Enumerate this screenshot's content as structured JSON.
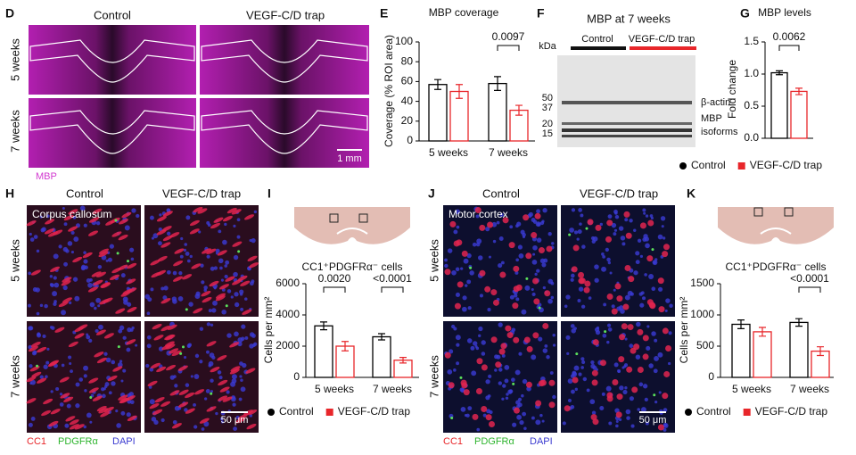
{
  "figure": {
    "D": {
      "label": "D",
      "columns": [
        "Control",
        "VEGF-C/D trap"
      ],
      "rows": [
        "5 weeks",
        "7 weeks"
      ],
      "stain": "MBP",
      "scale": "1 mm"
    },
    "F": {
      "label": "F",
      "title": "MBP at 7 weeks",
      "unit": "kDa",
      "groups": [
        "Control",
        "VEGF-C/D trap"
      ],
      "markers": [
        "50",
        "37",
        "20",
        "15"
      ],
      "bands": [
        "β-actin",
        "MBP",
        "isoforms"
      ]
    },
    "H": {
      "label": "H",
      "columns": [
        "Control",
        "VEGF-C/D trap"
      ],
      "region": "Corpus callosum",
      "rows": [
        "5 weeks",
        "7 weeks"
      ],
      "stains": [
        "CC1",
        "PDGFRα",
        "DAPI"
      ],
      "scale": "50 μm"
    },
    "J": {
      "label": "J",
      "columns": [
        "Control",
        "VEGF-C/D trap"
      ],
      "region": "Motor cortex",
      "rows": [
        "5 weeks",
        "7 weeks"
      ],
      "stains": [
        "CC1",
        "PDGFRα",
        "DAPI"
      ],
      "scale": "50 μm"
    }
  },
  "chart_data": [
    {
      "type": "bar",
      "panel": "E",
      "title": "MBP coverage",
      "y_label": "Coverage (% ROI area)",
      "categories": [
        "5 weeks",
        "7 weeks"
      ],
      "series": [
        {
          "name": "Control",
          "color": "#000000",
          "values": [
            57,
            58
          ],
          "errors": [
            5,
            7
          ]
        },
        {
          "name": "VEGF-C/D trap",
          "color": "#e8262a",
          "values": [
            50,
            31
          ],
          "errors": [
            7,
            5
          ]
        }
      ],
      "ylim": [
        0,
        100
      ],
      "yticks": [
        0,
        20,
        40,
        60,
        80,
        100
      ],
      "annotations": [
        "0.0097"
      ],
      "legend": false
    },
    {
      "type": "bar",
      "panel": "G",
      "title": "MBP levels",
      "y_label": "Fold change",
      "categories": [
        null
      ],
      "series": [
        {
          "name": "Control",
          "color": "#000000",
          "values": [
            1.02
          ],
          "errors": [
            0.03
          ]
        },
        {
          "name": "VEGF-C/D trap",
          "color": "#e8262a",
          "values": [
            0.73
          ],
          "errors": [
            0.05
          ]
        }
      ],
      "ylim": [
        0,
        1.5
      ],
      "yticks": [
        {
          "value": 0,
          "label": "0.0"
        },
        0.5,
        {
          "value": 1,
          "label": "1.0"
        },
        1.5
      ],
      "annotations": [
        "0.0062"
      ],
      "legend": true
    },
    {
      "type": "bar",
      "panel": "I",
      "title": "CC1⁺PDGFRα⁻ cells",
      "y_label": "Cells per mm²",
      "categories": [
        "5 weeks",
        "7 weeks"
      ],
      "series": [
        {
          "name": "Control",
          "color": "#000000",
          "values": [
            3300,
            2600
          ],
          "errors": [
            250,
            200
          ]
        },
        {
          "name": "VEGF-C/D trap",
          "color": "#e8262a",
          "values": [
            2000,
            1100
          ],
          "errors": [
            300,
            180
          ]
        }
      ],
      "ylim": [
        0,
        6000
      ],
      "yticks": [
        0,
        2000,
        4000,
        6000
      ],
      "annotations": [
        "0.0020",
        "<0.0001"
      ],
      "legend": true
    },
    {
      "type": "bar",
      "panel": "K",
      "title": "CC1⁺PDGFRα⁻ cells",
      "y_label": "Cells per mm²",
      "categories": [
        "5 weeks",
        "7 weeks"
      ],
      "series": [
        {
          "name": "Control",
          "color": "#000000",
          "values": [
            850,
            880
          ],
          "errors": [
            70,
            60
          ]
        },
        {
          "name": "VEGF-C/D trap",
          "color": "#e8262a",
          "values": [
            730,
            420
          ],
          "errors": [
            70,
            70
          ]
        }
      ],
      "ylim": [
        0,
        1500
      ],
      "yticks": [
        0,
        500,
        1000,
        1500
      ],
      "annotations": [
        "<0.0001"
      ],
      "legend": true
    }
  ]
}
